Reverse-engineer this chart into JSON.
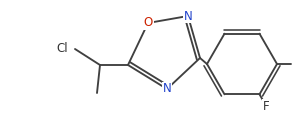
{
  "bg_color": "#ffffff",
  "line_color": "#404040",
  "figsize": [
    3.05,
    1.21
  ],
  "dpi": 100,
  "xlim": [
    0,
    305
  ],
  "ylim": [
    0,
    121
  ],
  "ring_O_color": "#cc2200",
  "ring_N_color": "#2244cc",
  "label_color": "#333333",
  "lw": 1.35
}
